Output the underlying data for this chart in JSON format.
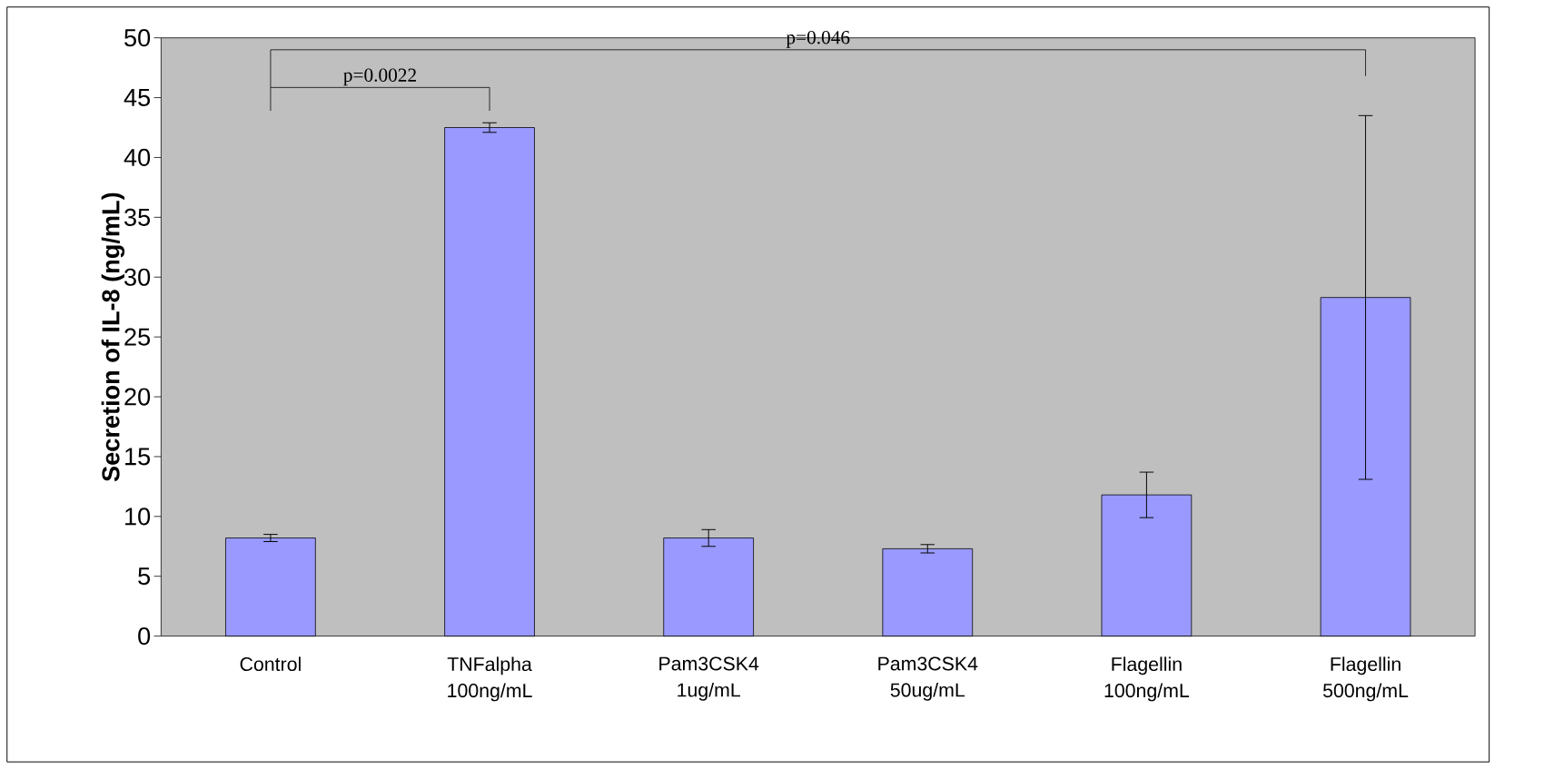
{
  "chart_data": {
    "type": "bar",
    "ylabel": "Secretion of IL-8 (ng/mL)",
    "categories": [
      "Control",
      "TNFalpha 100ng/mL",
      "Pam3CSK4 1ug/mL",
      "Pam3CSK4 50ug/mL",
      "Flagellin 100ng/mL",
      "Flagellin 500ng/mL"
    ],
    "values": [
      8.2,
      42.5,
      8.2,
      7.3,
      11.8,
      28.3
    ],
    "errors": [
      0.3,
      0.4,
      0.7,
      0.35,
      1.9,
      15.2
    ],
    "color": "#9999ff",
    "ylim": [
      0,
      50
    ],
    "yticks": [
      0,
      5,
      10,
      15,
      20,
      25,
      30,
      35,
      40,
      45,
      50
    ],
    "grid": false,
    "annotations": [
      "p=0.0022",
      "p=0.046"
    ]
  }
}
